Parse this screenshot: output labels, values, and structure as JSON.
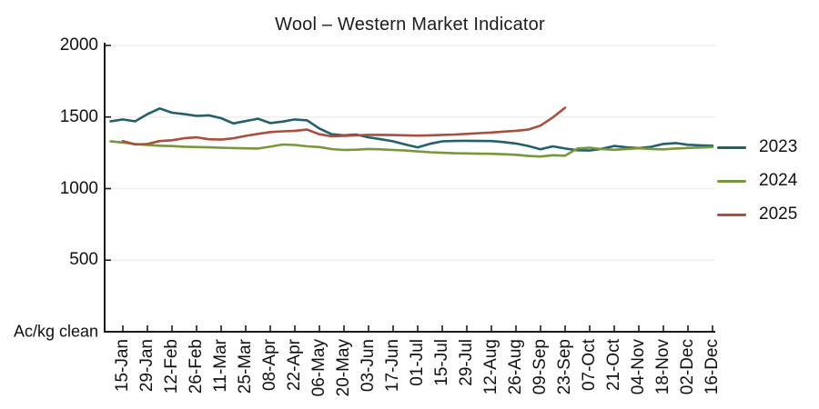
{
  "title": "Wool – Western Market Indicator",
  "chart_data": {
    "type": "line",
    "title": "Wool – Western Market Indicator",
    "y_axis": {
      "unit_label": "Ac/kg clean",
      "ticks": [
        2000,
        1500,
        1000,
        500
      ],
      "ylim": [
        0,
        2000
      ],
      "grid": true
    },
    "x_axis": {
      "tick_labels": [
        "15-Jan",
        "29-Jan",
        "12-Feb",
        "26-Feb",
        "11-Mar",
        "25-Mar",
        "08-Apr",
        "22-Apr",
        "06-May",
        "20-May",
        "03-Jun",
        "17-Jun",
        "01-Jul",
        "15-Jul",
        "29-Jul",
        "12-Aug",
        "26-Aug",
        "09-Sep",
        "23-Sep",
        "07-Oct",
        "21-Oct",
        "04-Nov",
        "18-Nov",
        "02-Dec",
        "16-Dec"
      ],
      "points_per_label_interval": 2,
      "note": "weekly data points, every second point labeled"
    },
    "legend": {
      "position": "right",
      "entries": [
        "2023",
        "2024",
        "2025"
      ]
    },
    "series": [
      {
        "name": "2023",
        "color": "#23606b",
        "values": [
          1470,
          1483,
          1470,
          1520,
          1560,
          1530,
          1520,
          1508,
          1512,
          1492,
          1455,
          1472,
          1488,
          1458,
          1468,
          1483,
          1477,
          1420,
          1380,
          1372,
          1378,
          1358,
          1345,
          1330,
          1308,
          1288,
          1313,
          1330,
          1333,
          1334,
          1333,
          1332,
          1325,
          1315,
          1298,
          1275,
          1295,
          1280,
          1268,
          1266,
          1278,
          1298,
          1288,
          1283,
          1292,
          1312,
          1318,
          1306,
          1302,
          1300
        ]
      },
      {
        "name": "2024",
        "color": "#76983b",
        "values": [
          1330,
          1322,
          1312,
          1305,
          1300,
          1297,
          1293,
          1290,
          1288,
          1285,
          1283,
          1281,
          1280,
          1293,
          1308,
          1305,
          1295,
          1290,
          1276,
          1270,
          1272,
          1277,
          1274,
          1270,
          1266,
          1260,
          1254,
          1250,
          1247,
          1246,
          1244,
          1243,
          1240,
          1236,
          1228,
          1224,
          1233,
          1230,
          1280,
          1286,
          1276,
          1271,
          1277,
          1282,
          1277,
          1274,
          1280,
          1284,
          1287,
          1290
        ]
      },
      {
        "name": "2025",
        "color": "#ab4e3b",
        "values": [
          null,
          1332,
          1308,
          1312,
          1332,
          1338,
          1352,
          1358,
          1345,
          1342,
          1352,
          1368,
          1382,
          1395,
          1400,
          1404,
          1412,
          1380,
          1365,
          1368,
          1372,
          1375,
          1375,
          1374,
          1372,
          1370,
          1372,
          1375,
          1378,
          1382,
          1387,
          1392,
          1398,
          1404,
          1412,
          1440,
          1497,
          1565,
          null,
          null,
          null,
          null,
          null,
          null,
          null,
          null,
          null,
          null,
          null,
          null
        ]
      }
    ]
  }
}
